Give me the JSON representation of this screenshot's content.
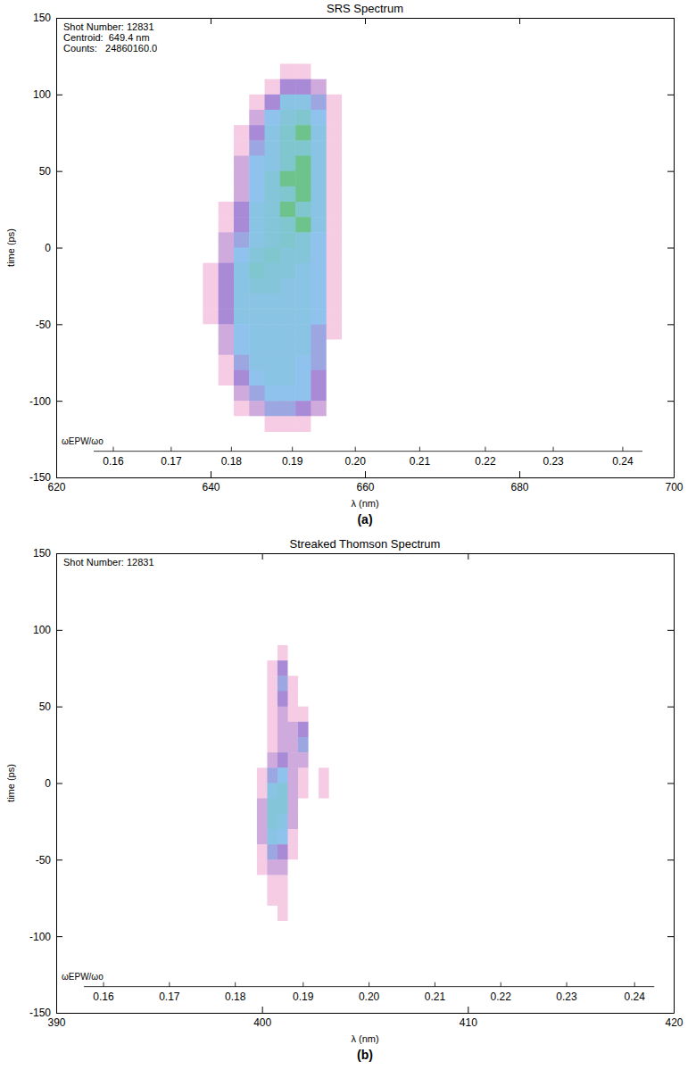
{
  "chart_data": [
    {
      "type": "heatmap",
      "title": "SRS Spectrum",
      "caption": "(a)",
      "x_label": "λ (nm)",
      "y_label": "time (ps)",
      "xlim": [
        620,
        700
      ],
      "xticks": [
        620,
        640,
        660,
        680,
        700
      ],
      "ylim": [
        -150,
        150
      ],
      "yticks": [
        -150,
        -100,
        -50,
        0,
        50,
        100,
        150
      ],
      "annotations": [
        "Shot Number: 12831",
        "Centroid:  649.4 nm",
        "Counts:   24860160.0"
      ],
      "freq_axis": {
        "label": "ωEPW/ωo",
        "ticks": [
          {
            "value": 627.4,
            "label": "0.16"
          },
          {
            "value": 634.9,
            "label": "0.17"
          },
          {
            "value": 642.7,
            "label": "0.18"
          },
          {
            "value": 650.6,
            "label": "0.19"
          },
          {
            "value": 658.75,
            "label": "0.20"
          },
          {
            "value": 667.1,
            "label": "0.21"
          },
          {
            "value": 675.6,
            "label": "0.22"
          },
          {
            "value": 684.4,
            "label": "0.23"
          },
          {
            "value": 693.4,
            "label": "0.24"
          }
        ]
      },
      "value_range": [
        0,
        10
      ],
      "x": [
        638,
        640,
        642,
        644,
        646,
        648,
        650,
        652,
        654,
        656,
        658
      ],
      "y": [
        115,
        105,
        95,
        85,
        75,
        65,
        55,
        45,
        35,
        25,
        15,
        5,
        -5,
        -15,
        -25,
        -35,
        -45,
        -55,
        -65,
        -75,
        -85,
        -95,
        -105,
        -115
      ],
      "values": [
        [
          0,
          0,
          0,
          0,
          0,
          0,
          1,
          1,
          0,
          0,
          0
        ],
        [
          0,
          0,
          0,
          0,
          0,
          1,
          3,
          3,
          2,
          0,
          0
        ],
        [
          0,
          0,
          0,
          0,
          1,
          3,
          6,
          6,
          4,
          1,
          0
        ],
        [
          0,
          0,
          0,
          0,
          2,
          5,
          7,
          8,
          5,
          1,
          0
        ],
        [
          0,
          0,
          0,
          1,
          3,
          6,
          8,
          9,
          6,
          1,
          0
        ],
        [
          0,
          0,
          0,
          1,
          4,
          6,
          8,
          8,
          6,
          1,
          0
        ],
        [
          0,
          0,
          0,
          2,
          5,
          6,
          8,
          9,
          6,
          1,
          0
        ],
        [
          0,
          0,
          0,
          2,
          5,
          7,
          9,
          9,
          6,
          1,
          0
        ],
        [
          0,
          0,
          0,
          2,
          5,
          7,
          8,
          9,
          6,
          1,
          0
        ],
        [
          0,
          0,
          1,
          3,
          6,
          7,
          9,
          8,
          6,
          1,
          0
        ],
        [
          0,
          0,
          1,
          3,
          6,
          7,
          8,
          9,
          6,
          1,
          0
        ],
        [
          0,
          0,
          2,
          4,
          6,
          7,
          8,
          7,
          5,
          1,
          0
        ],
        [
          0,
          0,
          2,
          5,
          7,
          8,
          7,
          7,
          5,
          1,
          0
        ],
        [
          0,
          1,
          3,
          6,
          8,
          7,
          7,
          6,
          5,
          1,
          0
        ],
        [
          0,
          1,
          3,
          6,
          7,
          7,
          6,
          6,
          5,
          1,
          0
        ],
        [
          0,
          1,
          3,
          6,
          6,
          6,
          6,
          6,
          5,
          1,
          0
        ],
        [
          0,
          1,
          3,
          6,
          6,
          6,
          6,
          6,
          5,
          1,
          0
        ],
        [
          0,
          0,
          2,
          5,
          6,
          6,
          6,
          6,
          4,
          1,
          0
        ],
        [
          0,
          0,
          2,
          5,
          6,
          6,
          6,
          6,
          4,
          0,
          0
        ],
        [
          0,
          0,
          1,
          4,
          6,
          6,
          6,
          5,
          4,
          0,
          0
        ],
        [
          0,
          0,
          1,
          3,
          5,
          6,
          6,
          5,
          3,
          0,
          0
        ],
        [
          0,
          0,
          0,
          2,
          4,
          5,
          5,
          5,
          3,
          0,
          0
        ],
        [
          0,
          0,
          0,
          1,
          2,
          4,
          4,
          3,
          2,
          0,
          0
        ],
        [
          0,
          0,
          0,
          0,
          0,
          1,
          1,
          1,
          0,
          0,
          0
        ]
      ]
    },
    {
      "type": "heatmap",
      "title": "Streaked Thomson Spectrum",
      "caption": "(b)",
      "x_label": "λ (nm)",
      "y_label": "time (ps)",
      "xlim": [
        390,
        420
      ],
      "xticks": [
        390,
        400,
        410,
        420
      ],
      "ylim": [
        -150,
        150
      ],
      "yticks": [
        -150,
        -100,
        -50,
        0,
        50,
        100,
        150
      ],
      "annotations": [
        "Shot Number: 12831"
      ],
      "freq_axis": {
        "label": "ωEPW/ωo",
        "ticks": [
          {
            "value": 392.3,
            "label": "0.16"
          },
          {
            "value": 395.5,
            "label": "0.17"
          },
          {
            "value": 398.7,
            "label": "0.18"
          },
          {
            "value": 402.0,
            "label": "0.19"
          },
          {
            "value": 405.2,
            "label": "0.20"
          },
          {
            "value": 408.4,
            "label": "0.21"
          },
          {
            "value": 411.6,
            "label": "0.22"
          },
          {
            "value": 414.8,
            "label": "0.23"
          },
          {
            "value": 418.1,
            "label": "0.24"
          }
        ]
      },
      "value_range": [
        0,
        10
      ],
      "x": [
        399.5,
        400,
        400.5,
        401,
        401.5,
        402,
        402.5,
        403,
        403.5
      ],
      "y": [
        85,
        75,
        65,
        55,
        45,
        35,
        25,
        15,
        5,
        -5,
        -15,
        -25,
        -35,
        -45,
        -55,
        -65,
        -75,
        -85,
        -95
      ],
      "values": [
        [
          0,
          0,
          0,
          1,
          0,
          0,
          0,
          0,
          0
        ],
        [
          0,
          0,
          1,
          3,
          0,
          0,
          0,
          0,
          0
        ],
        [
          0,
          0,
          1,
          4,
          1,
          0,
          0,
          0,
          0
        ],
        [
          0,
          0,
          1,
          3,
          1,
          0,
          0,
          0,
          0
        ],
        [
          0,
          0,
          1,
          2,
          1,
          1,
          0,
          0,
          0
        ],
        [
          0,
          0,
          1,
          2,
          2,
          3,
          0,
          0,
          0
        ],
        [
          0,
          0,
          1,
          2,
          2,
          4,
          0,
          0,
          0
        ],
        [
          0,
          0,
          2,
          3,
          2,
          2,
          0,
          0,
          0
        ],
        [
          0,
          1,
          4,
          5,
          2,
          1,
          0,
          1,
          0
        ],
        [
          0,
          1,
          6,
          7,
          2,
          1,
          0,
          1,
          0
        ],
        [
          0,
          2,
          7,
          7,
          2,
          0,
          0,
          0,
          0
        ],
        [
          0,
          2,
          7,
          6,
          2,
          0,
          0,
          0,
          0
        ],
        [
          0,
          2,
          6,
          5,
          1,
          0,
          0,
          0,
          0
        ],
        [
          0,
          1,
          4,
          3,
          1,
          0,
          0,
          0,
          0
        ],
        [
          0,
          1,
          2,
          2,
          0,
          0,
          0,
          0,
          0
        ],
        [
          0,
          0,
          1,
          1,
          0,
          0,
          0,
          0,
          0
        ],
        [
          0,
          0,
          1,
          1,
          0,
          0,
          0,
          0,
          0
        ],
        [
          0,
          0,
          0,
          1,
          0,
          0,
          0,
          0,
          0
        ],
        [
          0,
          0,
          0,
          0,
          0,
          0,
          0,
          0,
          0
        ]
      ]
    }
  ]
}
